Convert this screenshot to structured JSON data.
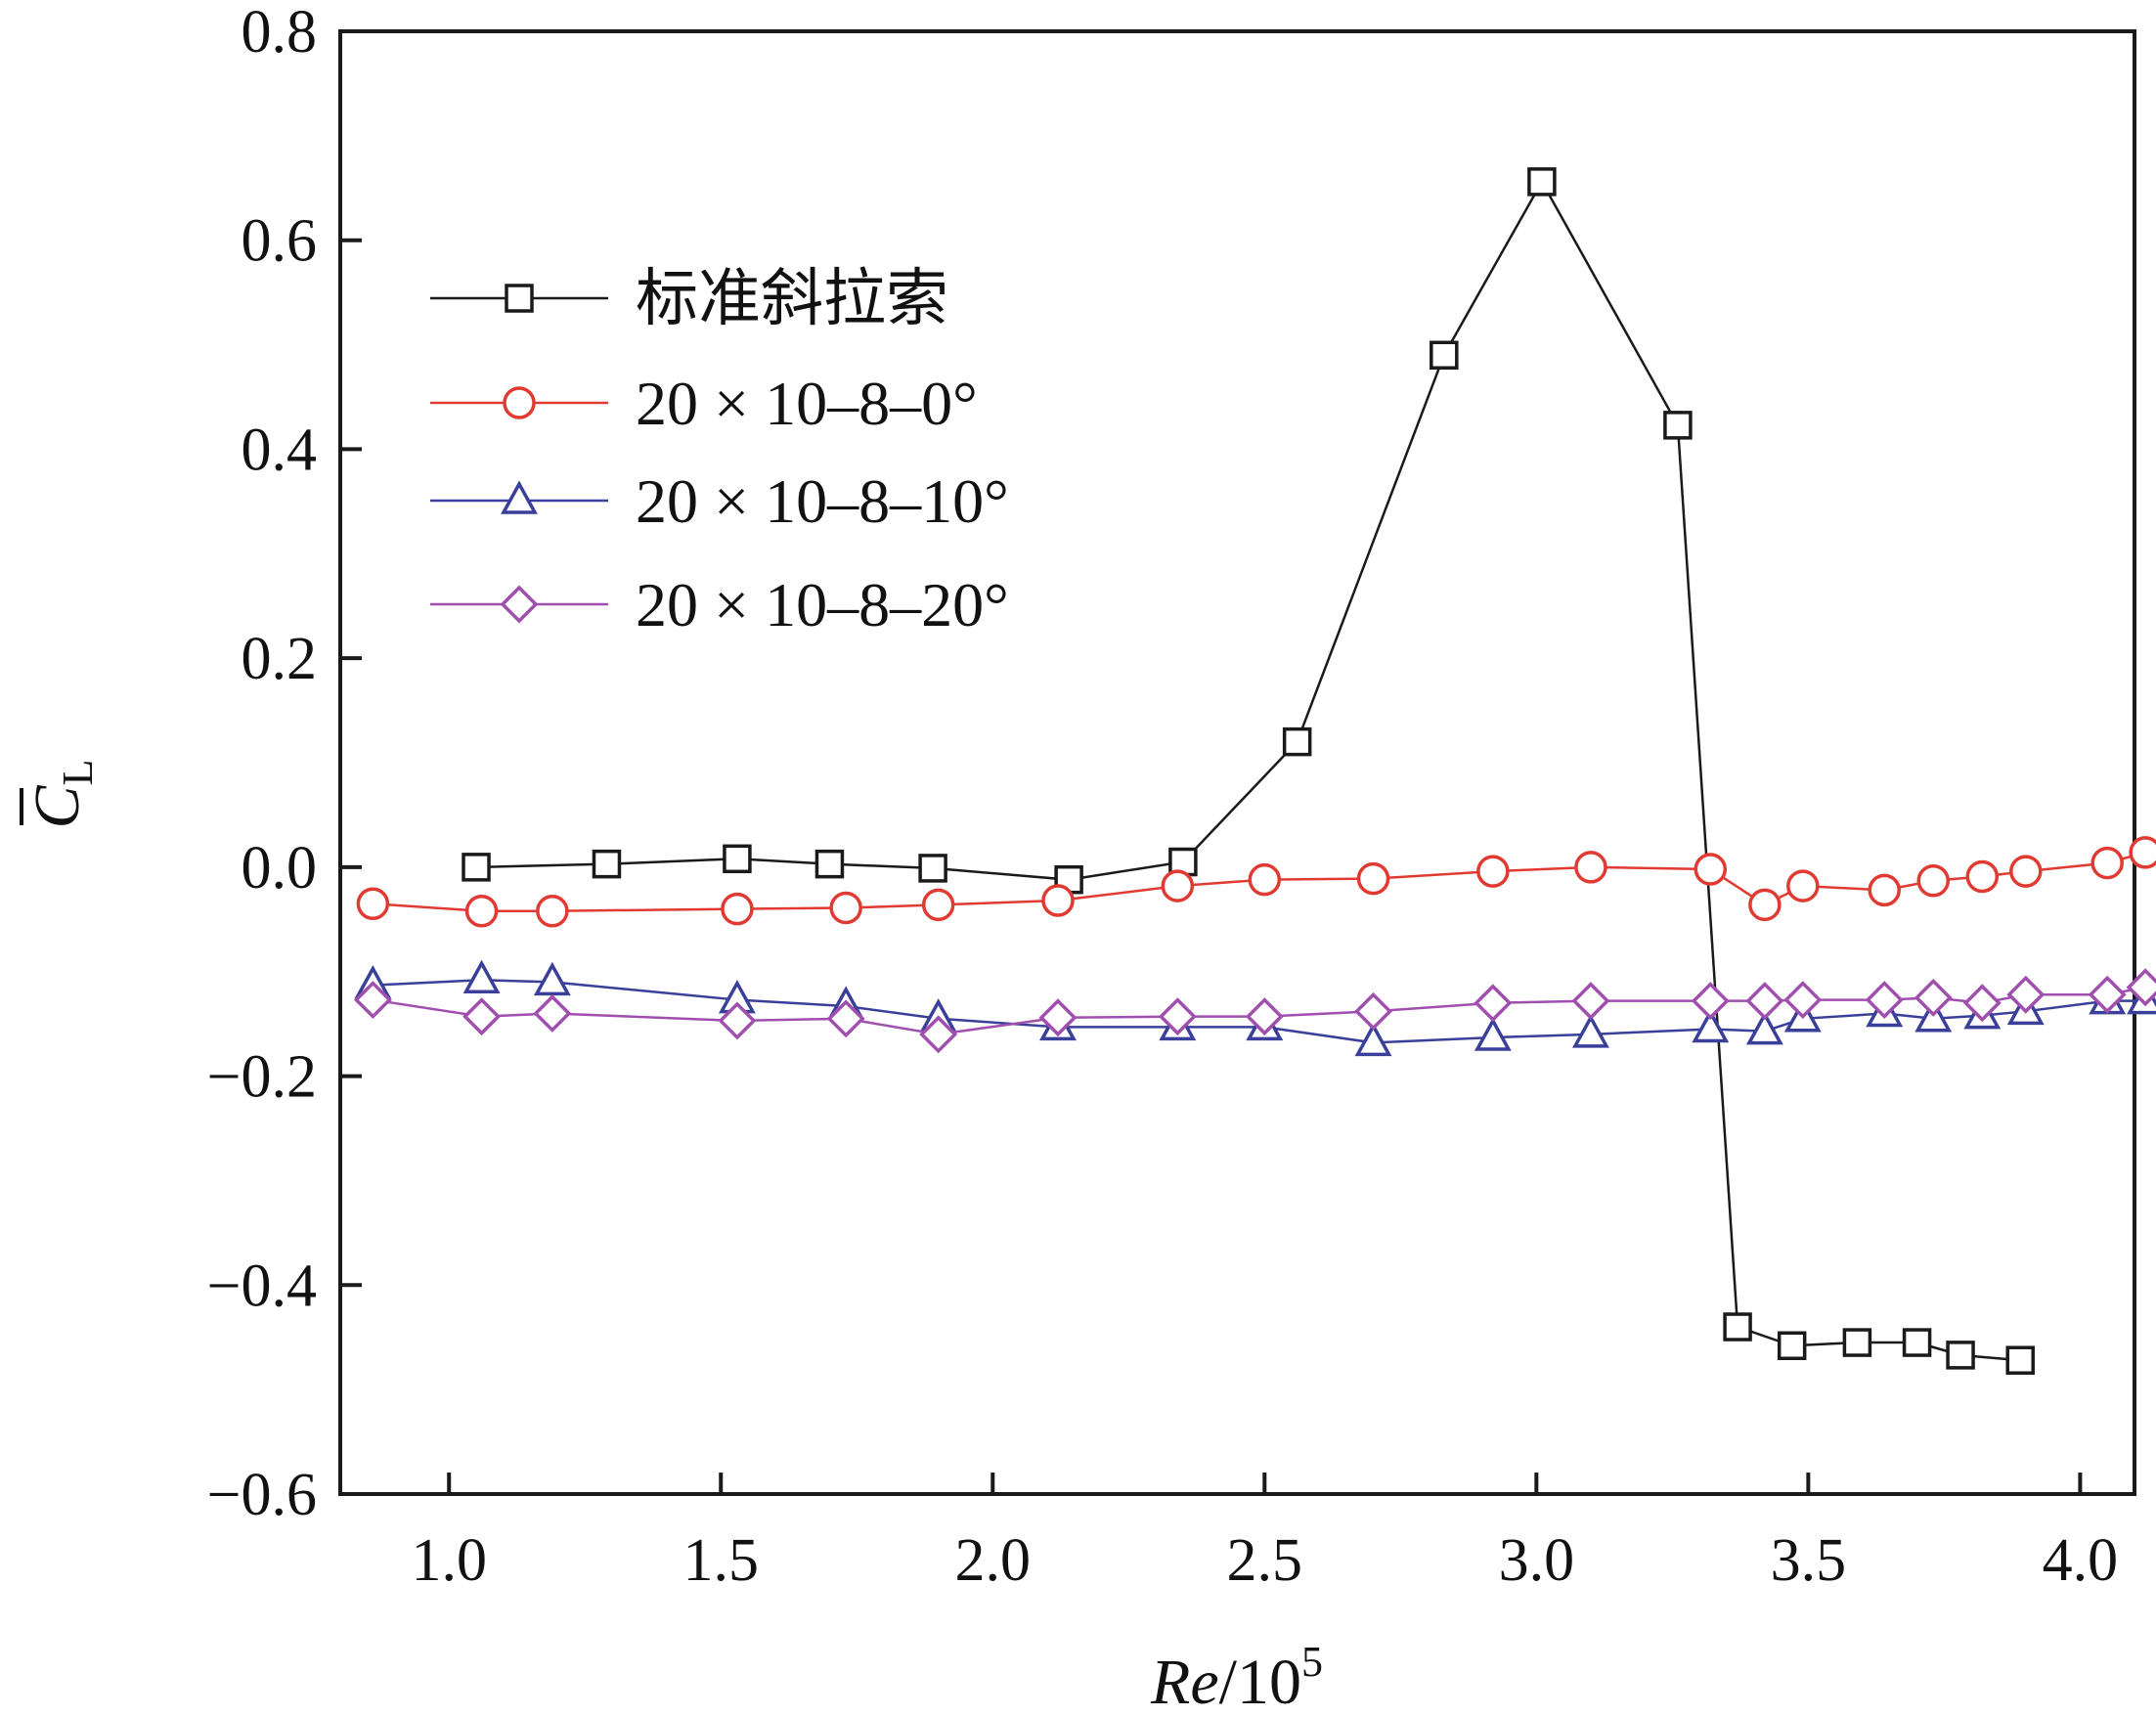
{
  "chart_data": {
    "type": "line",
    "xlabel": {
      "main": "Re",
      "base": "/10",
      "exp": "5"
    },
    "ylabel": {
      "symbol": "C",
      "sub": "L"
    },
    "xlim": [
      0.8,
      4.1
    ],
    "ylim": [
      -0.6,
      0.8
    ],
    "xticks": [
      1.0,
      1.5,
      2.0,
      2.5,
      3.0,
      3.5,
      4.0
    ],
    "xtick_labels": [
      "1.0",
      "1.5",
      "2.0",
      "2.5",
      "3.0",
      "3.5",
      "4.0"
    ],
    "yticks": [
      -0.6,
      -0.4,
      -0.2,
      0.0,
      0.2,
      0.4,
      0.6,
      0.8
    ],
    "ytick_labels": [
      "−0.6",
      "−0.4",
      "−0.2",
      "0.0",
      "0.2",
      "0.4",
      "0.6",
      "0.8"
    ],
    "grid": false,
    "legend_position": "top-left",
    "series": [
      {
        "name": "标准斜拉索",
        "marker": "square",
        "color": "#1a1a1a",
        "x": [
          1.05,
          1.29,
          1.53,
          1.7,
          1.89,
          2.14,
          2.35,
          2.56,
          2.83,
          3.01,
          3.26,
          3.37,
          3.47,
          3.59,
          3.7,
          3.78,
          3.89
        ],
        "y": [
          0.0,
          0.003,
          0.008,
          0.003,
          -0.001,
          -0.012,
          0.005,
          0.12,
          0.49,
          0.656,
          0.423,
          -0.44,
          -0.458,
          -0.455,
          -0.455,
          -0.467,
          -0.472
        ]
      },
      {
        "name": "20 × 10–8–0°",
        "marker": "circle",
        "color": "#e03a32",
        "x": [
          0.86,
          1.06,
          1.19,
          1.53,
          1.73,
          1.9,
          2.12,
          2.34,
          2.5,
          2.7,
          2.92,
          3.1,
          3.32,
          3.42,
          3.49,
          3.64,
          3.73,
          3.82,
          3.9,
          4.05,
          4.12
        ],
        "y": [
          -0.035,
          -0.042,
          -0.042,
          -0.04,
          -0.039,
          -0.036,
          -0.032,
          -0.018,
          -0.012,
          -0.011,
          -0.004,
          0.0,
          -0.002,
          -0.036,
          -0.018,
          -0.022,
          -0.013,
          -0.009,
          -0.004,
          0.004,
          0.014
        ]
      },
      {
        "name": "20 × 10–8–10°",
        "marker": "triangle",
        "color": "#3a3f9a",
        "x": [
          0.86,
          1.06,
          1.19,
          1.53,
          1.73,
          1.9,
          2.12,
          2.34,
          2.5,
          2.7,
          2.92,
          3.1,
          3.32,
          3.42,
          3.49,
          3.64,
          3.73,
          3.82,
          3.9,
          4.05,
          4.12
        ],
        "y": [
          -0.113,
          -0.108,
          -0.11,
          -0.127,
          -0.133,
          -0.145,
          -0.153,
          -0.153,
          -0.153,
          -0.168,
          -0.163,
          -0.16,
          -0.155,
          -0.157,
          -0.145,
          -0.14,
          -0.145,
          -0.142,
          -0.138,
          -0.128,
          -0.128
        ]
      },
      {
        "name": "20 × 10–8–20°",
        "marker": "diamond",
        "color": "#a04fae",
        "x": [
          0.86,
          1.06,
          1.19,
          1.53,
          1.73,
          1.9,
          2.12,
          2.34,
          2.5,
          2.7,
          2.92,
          3.1,
          3.32,
          3.42,
          3.49,
          3.64,
          3.73,
          3.82,
          3.9,
          4.05,
          4.12
        ],
        "y": [
          -0.127,
          -0.143,
          -0.14,
          -0.147,
          -0.145,
          -0.16,
          -0.144,
          -0.143,
          -0.143,
          -0.138,
          -0.13,
          -0.128,
          -0.128,
          -0.128,
          -0.127,
          -0.127,
          -0.125,
          -0.13,
          -0.122,
          -0.122,
          -0.115
        ]
      }
    ]
  }
}
